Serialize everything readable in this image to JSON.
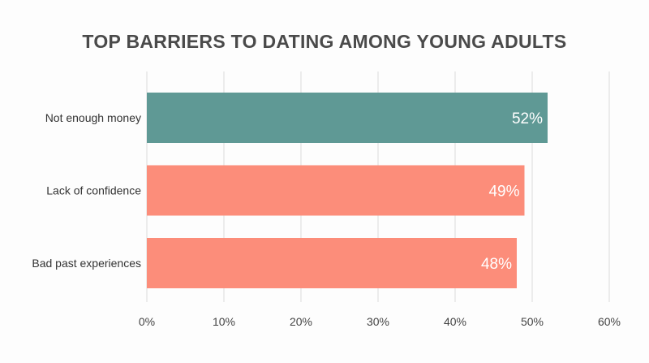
{
  "chart_data": {
    "type": "bar",
    "orientation": "horizontal",
    "title": "TOP BARRIERS TO DATING AMONG YOUNG ADULTS",
    "xlabel": "",
    "ylabel": "",
    "categories": [
      "Not enough money",
      "Lack of confidence",
      "Bad past experiences"
    ],
    "values": [
      52,
      49,
      48
    ],
    "value_labels": [
      "52%",
      "49%",
      "48%"
    ],
    "bar_colors": [
      "#5f9995",
      "#fc8d7a",
      "#fc8d7a"
    ],
    "xlim": [
      0,
      60
    ],
    "x_ticks": [
      0,
      10,
      20,
      30,
      40,
      50,
      60
    ],
    "x_tick_labels": [
      "0%",
      "10%",
      "20%",
      "30%",
      "40%",
      "50%",
      "60%"
    ],
    "grid": "vertical",
    "legend": "none"
  }
}
